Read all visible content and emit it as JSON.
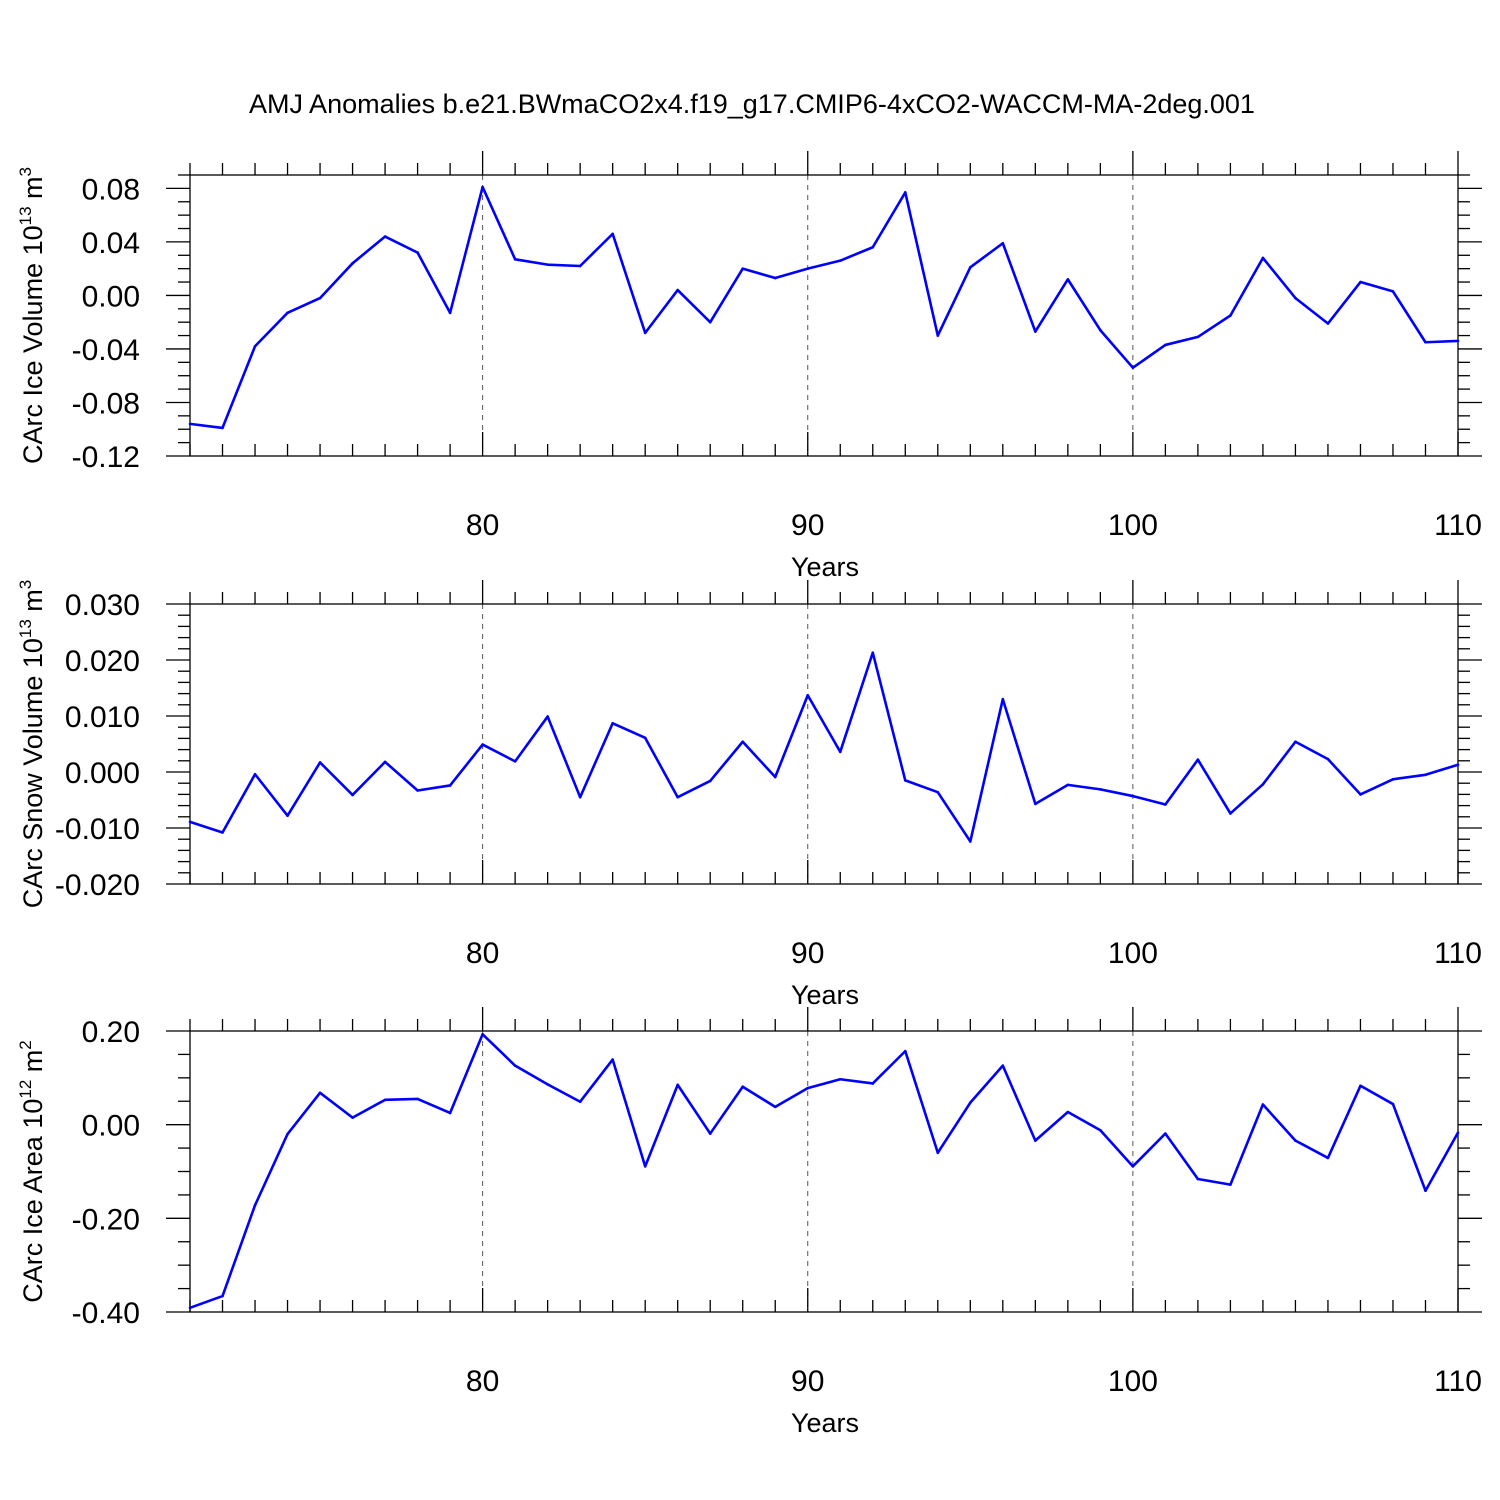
{
  "title": "AMJ Anomalies b.e21.BWmaCO2x4.f19_g17.CMIP6-4xCO2-WACCM-MA-2deg.001",
  "colors": {
    "series": "#0000ff",
    "axes": "#000000",
    "grid": "#555555"
  },
  "chart_data": [
    {
      "type": "line",
      "id": "ice-volume",
      "ylabel": {
        "base": "CArc Ice Volume 10",
        "exp1": "13",
        "mid": " m",
        "exp2": "3"
      },
      "xlabel": "Years",
      "xlim": [
        71,
        110
      ],
      "ylim": [
        -0.12,
        0.09
      ],
      "xticks": [
        80,
        90,
        100,
        110
      ],
      "xtick_labels": [
        "80",
        "90",
        "100",
        "110"
      ],
      "yticks": [
        -0.12,
        -0.08,
        -0.04,
        0.0,
        0.04,
        0.08
      ],
      "ytick_labels": [
        "-0.12",
        "-0.08",
        "-0.04",
        "0.00",
        "0.04",
        "0.08"
      ],
      "yminor_step": 0.01,
      "grid_x": [
        80,
        90,
        100
      ],
      "x": [
        71,
        72,
        73,
        74,
        75,
        76,
        77,
        78,
        79,
        80,
        81,
        82,
        83,
        84,
        85,
        86,
        87,
        88,
        89,
        90,
        91,
        92,
        93,
        94,
        95,
        96,
        97,
        98,
        99,
        100,
        101,
        102,
        103,
        104,
        105,
        106,
        107,
        108,
        109,
        110
      ],
      "values": [
        -0.096,
        -0.099,
        -0.038,
        -0.013,
        -0.002,
        0.024,
        0.044,
        0.032,
        -0.013,
        0.081,
        0.027,
        0.023,
        0.022,
        0.046,
        -0.028,
        0.004,
        -0.02,
        0.02,
        0.013,
        0.02,
        0.026,
        0.036,
        0.077,
        -0.03,
        0.021,
        0.039,
        -0.027,
        0.012,
        -0.026,
        -0.054,
        -0.037,
        -0.031,
        -0.015,
        0.028,
        -0.002,
        -0.021,
        0.01,
        0.003,
        -0.035,
        -0.034
      ]
    },
    {
      "type": "line",
      "id": "snow-volume",
      "ylabel": {
        "base": "CArc Snow Volume 10",
        "exp1": "13",
        "mid": " m",
        "exp2": "3"
      },
      "xlabel": "Years",
      "xlim": [
        71,
        110
      ],
      "ylim": [
        -0.02,
        0.03
      ],
      "xticks": [
        80,
        90,
        100,
        110
      ],
      "xtick_labels": [
        "80",
        "90",
        "100",
        "110"
      ],
      "yticks": [
        -0.02,
        -0.01,
        0.0,
        0.01,
        0.02,
        0.03
      ],
      "ytick_labels": [
        "-0.020",
        "-0.010",
        "0.000",
        "0.010",
        "0.020",
        "0.030"
      ],
      "yminor_step": 0.002,
      "grid_x": [
        80,
        90,
        100
      ],
      "x": [
        71,
        72,
        73,
        74,
        75,
        76,
        77,
        78,
        79,
        80,
        81,
        82,
        83,
        84,
        85,
        86,
        87,
        88,
        89,
        90,
        91,
        92,
        93,
        94,
        95,
        96,
        97,
        98,
        99,
        100,
        101,
        102,
        103,
        104,
        105,
        106,
        107,
        108,
        109,
        110
      ],
      "values": [
        -0.0089,
        -0.0108,
        -0.0004,
        -0.0078,
        0.0017,
        -0.0041,
        0.0018,
        -0.0033,
        -0.0024,
        0.0049,
        0.0019,
        0.0099,
        -0.0045,
        0.0087,
        0.0061,
        -0.0045,
        -0.0016,
        0.0054,
        -0.0009,
        0.0137,
        0.0036,
        0.0213,
        -0.0015,
        -0.0036,
        -0.0124,
        0.013,
        -0.0057,
        -0.0023,
        -0.0031,
        -0.0043,
        -0.0058,
        0.0022,
        -0.0074,
        -0.0022,
        0.0054,
        0.0023,
        -0.004,
        -0.0013,
        -0.0005,
        0.0013
      ]
    },
    {
      "type": "line",
      "id": "ice-area",
      "ylabel": {
        "base": "CArc Ice Area 10",
        "exp1": "12",
        "mid": " m",
        "exp2": "2"
      },
      "xlabel": "Years",
      "xlim": [
        71,
        110
      ],
      "ylim": [
        -0.4,
        0.2
      ],
      "xticks": [
        80,
        90,
        100,
        110
      ],
      "xtick_labels": [
        "80",
        "90",
        "100",
        "110"
      ],
      "yticks": [
        -0.4,
        -0.2,
        0.0,
        0.2
      ],
      "ytick_labels": [
        "-0.40",
        "-0.20",
        "0.00",
        "0.20"
      ],
      "yminor_step": 0.05,
      "grid_x": [
        80,
        90,
        100
      ],
      "x": [
        71,
        72,
        73,
        74,
        75,
        76,
        77,
        78,
        79,
        80,
        81,
        82,
        83,
        84,
        85,
        86,
        87,
        88,
        89,
        90,
        91,
        92,
        93,
        94,
        95,
        96,
        97,
        98,
        99,
        100,
        101,
        102,
        103,
        104,
        105,
        106,
        107,
        108,
        109,
        110
      ],
      "values": [
        -0.391,
        -0.366,
        -0.172,
        -0.02,
        0.068,
        0.015,
        0.053,
        0.055,
        0.025,
        0.193,
        0.126,
        0.086,
        0.049,
        0.139,
        -0.089,
        0.085,
        -0.019,
        0.081,
        0.038,
        0.078,
        0.097,
        0.088,
        0.157,
        -0.06,
        0.047,
        0.126,
        -0.034,
        0.027,
        -0.012,
        -0.089,
        -0.019,
        -0.116,
        -0.128,
        0.043,
        -0.034,
        -0.071,
        0.083,
        0.044,
        -0.141,
        -0.017
      ]
    }
  ]
}
